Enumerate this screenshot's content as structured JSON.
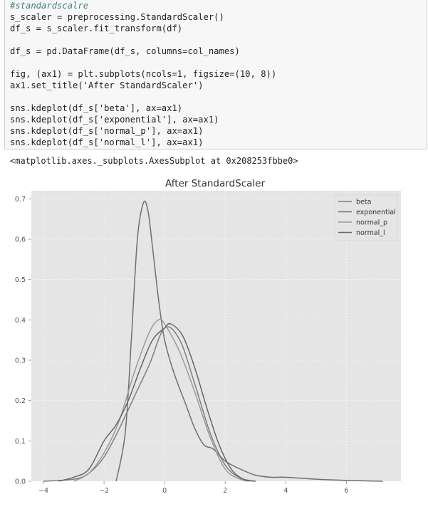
{
  "cell": {
    "lines": [
      "#standardscalre",
      "s_scaler = preprocessing.StandardScaler()",
      "df_s = s_scaler.fit_transform(df)",
      "",
      "df_s = pd.DataFrame(df_s, columns=col_names)",
      "",
      "fig, (ax1) = plt.subplots(ncols=1, figsize=(10, 8))",
      "ax1.set_title('After StandardScaler')",
      "",
      "sns.kdeplot(df_s['beta'], ax=ax1)",
      "sns.kdeplot(df_s['exponential'], ax=ax1)",
      "sns.kdeplot(df_s['normal_p'], ax=ax1)",
      "sns.kdeplot(df_s['normal_l'], ax=ax1)"
    ]
  },
  "output": {
    "repr": "<matplotlib.axes._subplots.AxesSubplot at 0x208253fbbe0>"
  },
  "chart_data": {
    "type": "line",
    "title": "After StandardScaler",
    "xlabel": "",
    "ylabel": "",
    "xlim": [
      -4.4,
      7.8
    ],
    "ylim": [
      0,
      0.72
    ],
    "xticks": [
      -4,
      -2,
      0,
      2,
      4,
      6
    ],
    "xtick_labels": [
      "−4",
      "−2",
      "0",
      "2",
      "4",
      "6"
    ],
    "yticks": [
      0.0,
      0.1,
      0.2,
      0.3,
      0.4,
      0.5,
      0.6,
      0.7
    ],
    "ytick_labels": [
      "0.0",
      "0.1",
      "0.2",
      "0.3",
      "0.4",
      "0.5",
      "0.6",
      "0.7"
    ],
    "grid": true,
    "legend_position": "top-right",
    "background": "#e5e5e5",
    "series": [
      {
        "name": "beta",
        "color": "#7f7f7f",
        "x": [
          -4.0,
          -3.0,
          -2.5,
          -2.0,
          -1.5,
          -1.0,
          -0.5,
          0.0,
          0.5,
          1.0,
          1.5,
          2.0,
          2.5,
          3.0
        ],
        "y": [
          0.0,
          0.005,
          0.02,
          0.06,
          0.13,
          0.21,
          0.29,
          0.38,
          0.35,
          0.24,
          0.12,
          0.04,
          0.008,
          0.0
        ]
      },
      {
        "name": "exponential",
        "color": "#6f6f6f",
        "x": [
          -1.6,
          -1.3,
          -1.1,
          -0.9,
          -0.7,
          -0.55,
          -0.4,
          -0.2,
          0.0,
          0.3,
          0.7,
          1.0,
          1.3,
          1.6,
          2.0,
          2.5,
          3.0,
          3.5,
          4.0,
          5.0,
          6.0,
          7.2
        ],
        "y": [
          0.0,
          0.12,
          0.35,
          0.6,
          0.69,
          0.67,
          0.58,
          0.45,
          0.35,
          0.27,
          0.19,
          0.13,
          0.09,
          0.08,
          0.05,
          0.03,
          0.015,
          0.01,
          0.01,
          0.005,
          0.002,
          0.0
        ]
      },
      {
        "name": "normal_p",
        "color": "#9a9a9a",
        "x": [
          -3.0,
          -2.5,
          -2.0,
          -1.5,
          -1.0,
          -0.5,
          -0.2,
          0.0,
          0.5,
          1.0,
          1.5,
          2.0,
          2.5,
          2.8
        ],
        "y": [
          0.0,
          0.02,
          0.07,
          0.15,
          0.27,
          0.37,
          0.4,
          0.39,
          0.32,
          0.22,
          0.11,
          0.03,
          0.005,
          0.0
        ]
      },
      {
        "name": "normal_l",
        "color": "#666666",
        "x": [
          -3.5,
          -3.0,
          -2.5,
          -2.0,
          -1.6,
          -1.2,
          -0.8,
          -0.4,
          0.0,
          0.2,
          0.6,
          1.0,
          1.4,
          1.8,
          2.2,
          2.6,
          3.0
        ],
        "y": [
          0.0,
          0.01,
          0.03,
          0.1,
          0.14,
          0.2,
          0.28,
          0.35,
          0.38,
          0.39,
          0.36,
          0.28,
          0.18,
          0.09,
          0.03,
          0.005,
          0.0
        ]
      }
    ]
  }
}
